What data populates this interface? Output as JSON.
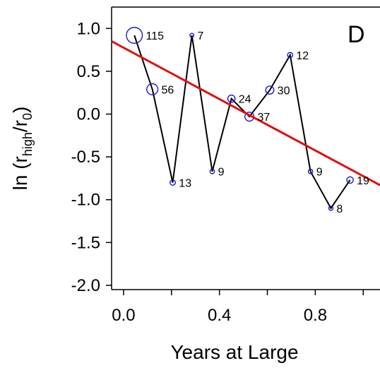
{
  "chart_data": {
    "type": "line",
    "panel_label": "D",
    "xlabel": "Years at Large",
    "ylabel": "ln (r",
    "ylabel_parts": {
      "prefix": "ln (r",
      "sub1": "high",
      "slash": "/r",
      "sub2": "0",
      "suffix": ")"
    },
    "xlim": [
      -0.05,
      1.07
    ],
    "ylim": [
      -2.05,
      1.25
    ],
    "x_ticks": [
      0.0,
      0.4,
      0.8
    ],
    "x_tick_labels": [
      "0.0",
      "0.4",
      "0.8"
    ],
    "x_minor_ticks": [
      0.0,
      0.2,
      0.4,
      0.6,
      0.8,
      1.0
    ],
    "y_ticks": [
      1.0,
      0.5,
      0.0,
      -0.5,
      -1.0,
      -1.5,
      -2.0
    ],
    "y_tick_labels": [
      "1.0",
      "0.5",
      "0.0",
      "-0.5",
      "-1.0",
      "-1.5",
      "-2.0"
    ],
    "series": [
      {
        "x": [
          0.045,
          0.12,
          0.205,
          0.285,
          0.37,
          0.45,
          0.525,
          0.61,
          0.695,
          0.78,
          0.865,
          0.945
        ],
        "y": [
          0.92,
          0.29,
          -0.8,
          0.92,
          -0.67,
          0.18,
          -0.03,
          0.28,
          0.69,
          -0.67,
          -1.1,
          -0.77
        ],
        "labels": [
          "115",
          "56",
          "13",
          "7",
          "9",
          "24",
          "37",
          "30",
          "12",
          "9",
          "8",
          "19"
        ],
        "color": "#000000",
        "marker_color": "#1a1acc"
      }
    ],
    "regression": {
      "x": [
        -0.05,
        1.07
      ],
      "y": [
        0.85,
        -0.83
      ],
      "color": "#e01010"
    },
    "grid": false
  }
}
